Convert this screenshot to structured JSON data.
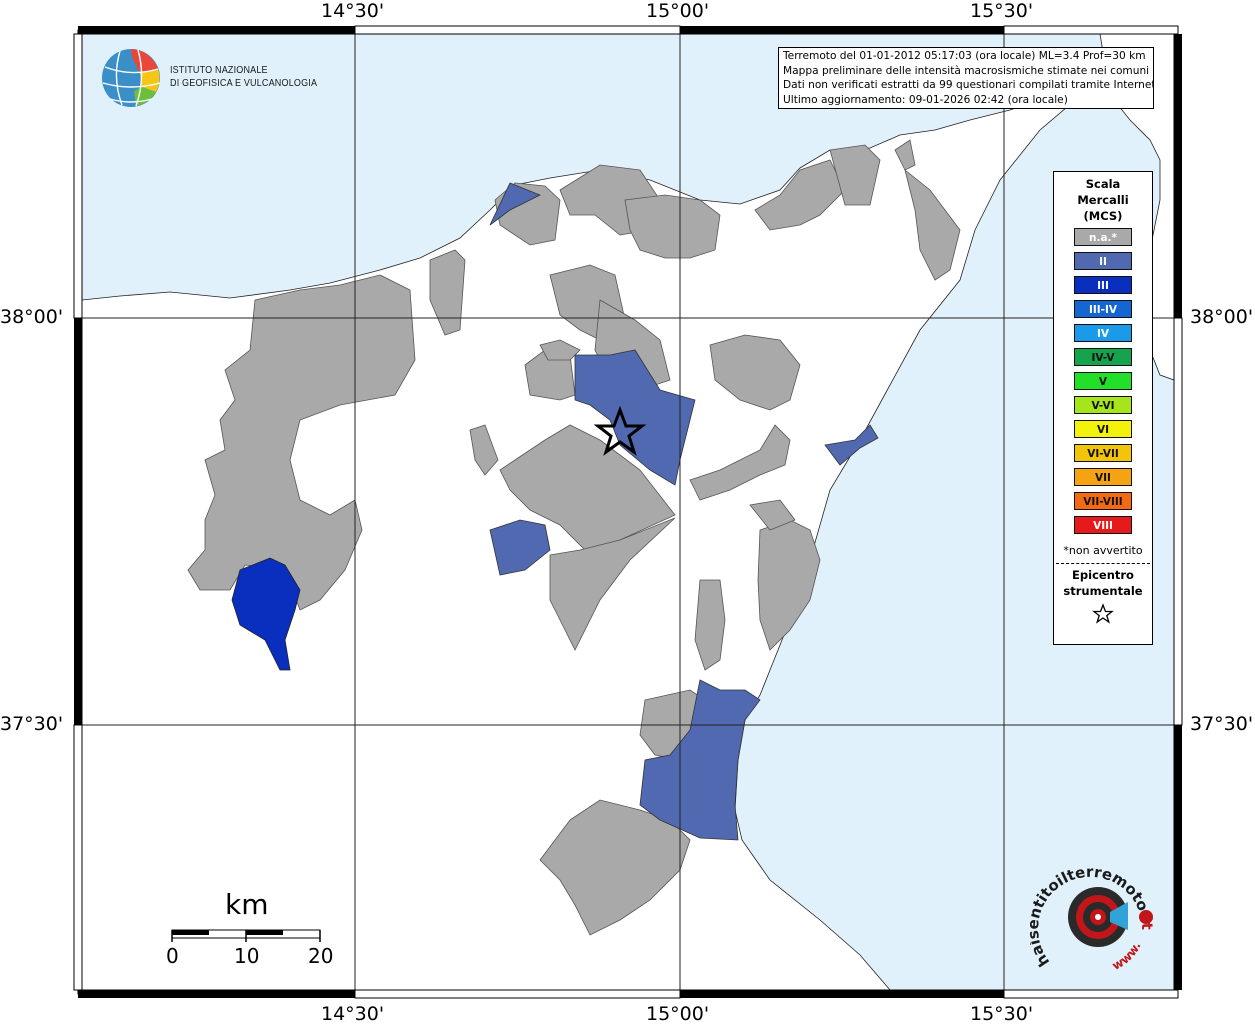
{
  "info": {
    "line1": "Terremoto del 01-01-2012 05:17:03 (ora locale) ML=3.4 Prof=30 km",
    "line2": "Mappa preliminare delle intensità macrosismiche stimate nei comuni",
    "line3": "Dati non verificati estratti da 99 questionari compilati tramite Internet.",
    "line4": "Ultimo aggiornamento: 09-01-2026 02:42 (ora locale)"
  },
  "logo": {
    "line1": "ISTITUTO NAZIONALE",
    "line2": "DI GEOFISICA E VULCANOLOGIA",
    "icon": "ingv-globe-icon"
  },
  "legend": {
    "title_line1": "Scala",
    "title_line2": "Mercalli",
    "title_line3": "(MCS)",
    "items": [
      {
        "label": "n.a.*",
        "color": "#a9a9a9"
      },
      {
        "label": "II",
        "color": "#5069b0"
      },
      {
        "label": "III",
        "color": "#0a2fbf"
      },
      {
        "label": "III-IV",
        "color": "#1466d2"
      },
      {
        "label": "IV",
        "color": "#1a9ae8"
      },
      {
        "label": "IV-V",
        "color": "#17a24e"
      },
      {
        "label": "V",
        "color": "#22e02a"
      },
      {
        "label": "V-VI",
        "color": "#a6e41c"
      },
      {
        "label": "VI",
        "color": "#f2f20a"
      },
      {
        "label": "VI-VII",
        "color": "#f2c50a"
      },
      {
        "label": "VII",
        "color": "#f5a313"
      },
      {
        "label": "VII-VIII",
        "color": "#f26a13"
      },
      {
        "label": "VIII",
        "color": "#e61a1a"
      }
    ],
    "note": "*non avvertito",
    "epicenter_line1": "Epicentro",
    "epicenter_line2": "strumentale",
    "epicenter_icon": "star-icon"
  },
  "coords": {
    "top": [
      "14°30'",
      "15°00'",
      "15°30'"
    ],
    "bottom": [
      "14°30'",
      "15°00'",
      "15°30'"
    ],
    "left": [
      "38°00'",
      "37°30'"
    ],
    "right": [
      "38°00'",
      "37°30'"
    ]
  },
  "scale_bar": {
    "unit": "km",
    "ticks": [
      "0",
      "10",
      "20"
    ]
  },
  "site_logo": {
    "text_main": "haisentitoilterremoto",
    "text_tld": ".it",
    "text_www": "www.",
    "icon": "seismometer-logo-icon"
  },
  "colors": {
    "sea": "#e1f1fb",
    "land": "#ffffff",
    "na": "#a9a9a9",
    "ii": "#5069b0",
    "iii": "#0a2fbf"
  }
}
